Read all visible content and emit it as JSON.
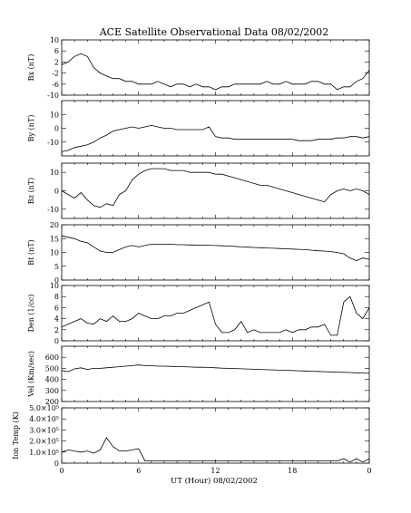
{
  "chart_data": {
    "type": "line",
    "title": "ACE Satellite Observational Data   08/02/2002",
    "xlabel": "UT (Hour)   08/02/2002",
    "x_ticks": [
      "0",
      "6",
      "12",
      "18",
      "0"
    ],
    "xlim": [
      0,
      24
    ],
    "panels": [
      {
        "name": "Bx",
        "ylabel": "Bx (nT)",
        "ylim": [
          -10,
          10
        ],
        "y_ticks": [
          "10",
          "6",
          "2",
          "-2",
          "-6",
          "-10"
        ],
        "x": [
          0,
          0.5,
          1,
          1.5,
          2,
          2.5,
          3,
          3.5,
          4,
          4.5,
          5,
          5.5,
          6,
          6.5,
          7,
          7.5,
          8,
          8.5,
          9,
          9.5,
          10,
          10.5,
          11,
          11.5,
          12,
          12.5,
          13,
          13.5,
          14,
          14.5,
          15,
          15.5,
          16,
          16.5,
          17,
          17.5,
          18,
          18.5,
          19,
          19.5,
          20,
          20.5,
          21,
          21.5,
          22,
          22.5,
          23,
          23.5,
          24
        ],
        "values": [
          1,
          2,
          4,
          5,
          4,
          0,
          -2,
          -3,
          -4,
          -4,
          -5,
          -5,
          -6,
          -6,
          -6,
          -5,
          -6,
          -7,
          -6,
          -6,
          -7,
          -6,
          -7,
          -7,
          -8,
          -7,
          -7,
          -6,
          -6,
          -6,
          -6,
          -6,
          -5,
          -6,
          -6,
          -5,
          -6,
          -6,
          -6,
          -5,
          -5,
          -6,
          -6,
          -8,
          -7,
          -7,
          -5,
          -4,
          -1
        ]
      },
      {
        "name": "By",
        "ylabel": "By (nT)",
        "ylim": [
          -20,
          20
        ],
        "y_ticks": [
          "10",
          "0",
          "-10"
        ],
        "x": [
          0,
          0.5,
          1,
          1.5,
          2,
          2.5,
          3,
          3.5,
          4,
          4.5,
          5,
          5.5,
          6,
          6.5,
          7,
          7.5,
          8,
          8.5,
          9,
          9.5,
          10,
          10.5,
          11,
          11.5,
          12,
          12.5,
          13,
          13.5,
          14,
          14.5,
          15,
          15.5,
          16,
          16.5,
          17,
          17.5,
          18,
          18.5,
          19,
          19.5,
          20,
          20.5,
          21,
          21.5,
          22,
          22.5,
          23,
          23.5,
          24
        ],
        "values": [
          -17,
          -16,
          -14,
          -13,
          -12,
          -10,
          -7,
          -5,
          -2,
          -1,
          0,
          1,
          0,
          1,
          2,
          1,
          0,
          0,
          -1,
          -1,
          -1,
          -1,
          -1,
          1,
          -6,
          -7,
          -7,
          -8,
          -8,
          -8,
          -8,
          -8,
          -8,
          -8,
          -8,
          -8,
          -8,
          -9,
          -9,
          -9,
          -8,
          -8,
          -8,
          -7,
          -7,
          -6,
          -6,
          -7,
          -6
        ]
      },
      {
        "name": "Bz",
        "ylabel": "Bz (nT)",
        "ylim": [
          -15,
          15
        ],
        "y_ticks": [
          "10",
          "0",
          "-10"
        ],
        "x": [
          0,
          0.5,
          1,
          1.5,
          2,
          2.5,
          3,
          3.5,
          4,
          4.5,
          5,
          5.5,
          6,
          6.5,
          7,
          7.5,
          8,
          8.5,
          9,
          9.5,
          10,
          10.5,
          11,
          11.5,
          12,
          12.5,
          13,
          13.5,
          14,
          14.5,
          15,
          15.5,
          16,
          16.5,
          17,
          17.5,
          18,
          18.5,
          19,
          19.5,
          20,
          20.5,
          21,
          21.5,
          22,
          22.5,
          23,
          23.5,
          24
        ],
        "values": [
          0,
          -2,
          -4,
          -1,
          -5,
          -8,
          -9,
          -7,
          -8,
          -2,
          0,
          6,
          9,
          11,
          12,
          12,
          12,
          11,
          11,
          11,
          10,
          10,
          10,
          10,
          9,
          9,
          8,
          7,
          6,
          5,
          4,
          3,
          3,
          2,
          1,
          0,
          -1,
          -2,
          -3,
          -4,
          -5,
          -6,
          -2,
          0,
          1,
          0,
          1,
          0,
          -2
        ]
      },
      {
        "name": "Bt",
        "ylabel": "Bt (nT)",
        "ylim": [
          0,
          20
        ],
        "y_ticks": [
          "20",
          "15",
          "10",
          "5",
          "0"
        ],
        "x": [
          0,
          0.5,
          1,
          1.5,
          2,
          2.5,
          3,
          3.5,
          4,
          4.5,
          5,
          5.5,
          6,
          6.5,
          7,
          7.5,
          8,
          8.5,
          9,
          9.5,
          10,
          10.5,
          11,
          11.5,
          12,
          12.5,
          13,
          13.5,
          14,
          14.5,
          15,
          15.5,
          16,
          16.5,
          17,
          17.5,
          18,
          18.5,
          19,
          19.5,
          20,
          20.5,
          21,
          21.5,
          22,
          22.5,
          23,
          23.5,
          24
        ],
        "values": [
          16,
          15.5,
          15,
          14,
          13.5,
          12,
          10.5,
          10,
          10,
          11,
          12,
          12.5,
          12,
          12.5,
          13,
          13,
          13,
          13,
          12.8,
          12.8,
          12.7,
          12.7,
          12.6,
          12.6,
          12.5,
          12.4,
          12.3,
          12.2,
          12,
          11.9,
          11.8,
          11.7,
          11.6,
          11.5,
          11.4,
          11.3,
          11.2,
          11.1,
          11,
          10.8,
          10.6,
          10.5,
          10.3,
          10,
          9.5,
          8,
          7,
          8,
          7.5
        ]
      },
      {
        "name": "Den",
        "ylabel": "Den (1/cc)",
        "ylim": [
          0,
          10
        ],
        "y_ticks": [
          "10",
          "8",
          "6",
          "4",
          "2",
          "0"
        ],
        "x": [
          0,
          0.5,
          1,
          1.5,
          2,
          2.5,
          3,
          3.5,
          4,
          4.5,
          5,
          5.5,
          6,
          6.5,
          7,
          7.5,
          8,
          8.5,
          9,
          9.5,
          10,
          10.5,
          11,
          11.5,
          12,
          12.5,
          13,
          13.5,
          14,
          14.5,
          15,
          15.5,
          16,
          16.5,
          17,
          17.5,
          18,
          18.5,
          19,
          19.5,
          20,
          20.5,
          21,
          21.5,
          22,
          22.5,
          23,
          23.5,
          24
        ],
        "values": [
          2.5,
          3,
          3.5,
          4,
          3.2,
          3,
          4,
          3.5,
          4.5,
          3.5,
          3.5,
          4,
          5,
          4.5,
          4,
          4,
          4.5,
          4.5,
          5,
          5,
          5.5,
          6,
          6.5,
          7,
          3,
          1.5,
          1.5,
          2,
          3.5,
          1.5,
          2,
          1.5,
          1.5,
          1.5,
          1.5,
          2,
          1.5,
          2,
          2,
          2.5,
          2.5,
          3,
          1,
          1,
          7,
          8,
          5,
          4,
          6
        ]
      },
      {
        "name": "Vel",
        "ylabel": "Vel (Km/sec)",
        "ylim": [
          200,
          700
        ],
        "y_ticks": [
          "600",
          "500",
          "400",
          "300",
          "200"
        ],
        "x": [
          0,
          0.5,
          1,
          1.5,
          2,
          2.5,
          3,
          3.5,
          4,
          4.5,
          5,
          5.5,
          6,
          6.5,
          7,
          7.5,
          8,
          8.5,
          9,
          9.5,
          10,
          10.5,
          11,
          11.5,
          12,
          12.5,
          13,
          13.5,
          14,
          14.5,
          15,
          15.5,
          16,
          16.5,
          17,
          17.5,
          18,
          18.5,
          19,
          19.5,
          20,
          20.5,
          21,
          21.5,
          22,
          22.5,
          23,
          23.5,
          24
        ],
        "values": [
          480,
          470,
          495,
          505,
          490,
          500,
          500,
          505,
          510,
          515,
          520,
          525,
          530,
          525,
          525,
          520,
          520,
          518,
          515,
          515,
          512,
          510,
          510,
          508,
          505,
          502,
          500,
          498,
          496,
          494,
          492,
          490,
          488,
          486,
          484,
          482,
          480,
          478,
          476,
          474,
          472,
          470,
          468,
          466,
          464,
          462,
          460,
          458,
          455
        ]
      },
      {
        "name": "Ion Temp",
        "ylabel": "Ion Temp (K)",
        "ylim": [
          0,
          500000
        ],
        "y_ticks": [
          "5.0×10⁵",
          "4.0×10⁵",
          "3.0×10⁵",
          "2.0×10⁵",
          "1.0×10⁵",
          "0"
        ],
        "x": [
          0,
          0.5,
          1,
          1.5,
          2,
          2.5,
          3,
          3.5,
          4,
          4.5,
          5,
          5.5,
          6,
          6.5,
          7,
          7.5,
          8,
          8.5,
          9,
          9.5,
          10,
          10.5,
          11,
          11.5,
          12,
          12.5,
          13,
          13.5,
          14,
          14.5,
          15,
          15.5,
          16,
          16.5,
          17,
          17.5,
          18,
          18.5,
          19,
          19.5,
          20,
          20.5,
          21,
          21.5,
          22,
          22.5,
          23,
          23.5,
          24
        ],
        "values": [
          100000,
          120000,
          110000,
          100000,
          110000,
          90000,
          120000,
          230000,
          150000,
          110000,
          110000,
          120000,
          130000,
          20000,
          20000,
          20000,
          20000,
          20000,
          20000,
          20000,
          20000,
          20000,
          20000,
          20000,
          20000,
          20000,
          20000,
          20000,
          20000,
          20000,
          20000,
          20000,
          20000,
          20000,
          20000,
          20000,
          20000,
          20000,
          20000,
          20000,
          20000,
          20000,
          20000,
          20000,
          40000,
          10000,
          40000,
          10000,
          40000
        ]
      }
    ]
  }
}
